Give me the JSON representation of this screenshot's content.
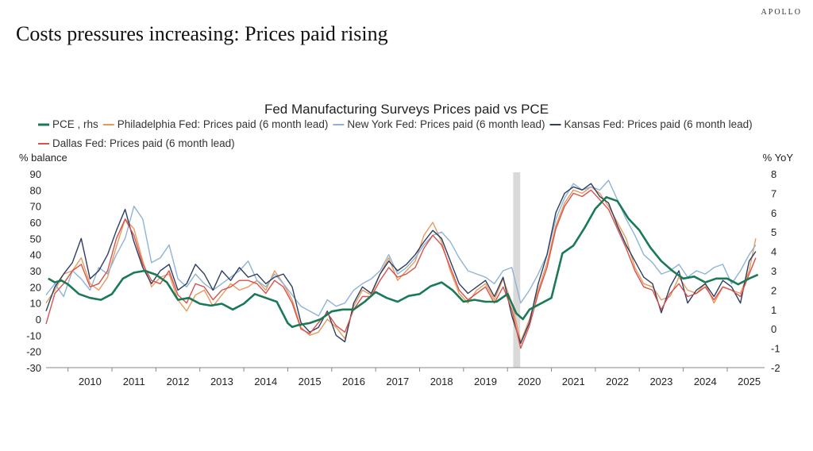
{
  "header": {
    "brand": "APOLLO",
    "title": "Costs pressures increasing: Prices paid rising"
  },
  "chart_data": {
    "type": "line",
    "title": "Fed Manufacturing Surveys Prices paid vs PCE",
    "ylabel_left": "% balance",
    "ylabel_right": "% YoY",
    "ylim_left": [
      -30,
      90
    ],
    "ylim_right": [
      -2,
      8
    ],
    "yticks_left": [
      "90",
      "80",
      "70",
      "60",
      "50",
      "40",
      "30",
      "20",
      "10",
      "0",
      "-10",
      "-20",
      "-30"
    ],
    "yticks_right": [
      "8",
      "7",
      "6",
      "5",
      "4",
      "3",
      "2",
      "1",
      "0",
      "-1",
      "-2"
    ],
    "x_categories": [
      "2010",
      "2011",
      "2012",
      "2013",
      "2014",
      "2015",
      "2016",
      "2017",
      "2018",
      "2019",
      "2020",
      "2021",
      "2022",
      "2023",
      "2024",
      "2025"
    ],
    "xlim": [
      2009.5,
      2025.85
    ],
    "recession": [
      2020.13,
      2020.29
    ],
    "legend_position": "top",
    "series": [
      {
        "name": "PCE , rhs",
        "axis": "right",
        "color": "#1a7a55",
        "width": 2.6,
        "x": [
          2009.55,
          2009.7,
          2009.85,
          2010.0,
          2010.25,
          2010.5,
          2010.75,
          2011.0,
          2011.25,
          2011.5,
          2011.75,
          2012.0,
          2012.25,
          2012.5,
          2012.75,
          2013.0,
          2013.25,
          2013.5,
          2013.75,
          2014.0,
          2014.25,
          2014.5,
          2014.75,
          2015.0,
          2015.1,
          2015.25,
          2015.5,
          2015.75,
          2016.0,
          2016.25,
          2016.5,
          2016.75,
          2017.0,
          2017.25,
          2017.5,
          2017.75,
          2018.0,
          2018.25,
          2018.5,
          2018.75,
          2019.0,
          2019.25,
          2019.5,
          2019.75,
          2020.0,
          2020.2,
          2020.35,
          2020.5,
          2020.75,
          2021.0,
          2021.25,
          2021.5,
          2021.75,
          2022.0,
          2022.25,
          2022.5,
          2022.75,
          2023.0,
          2023.25,
          2023.5,
          2023.75,
          2024.0,
          2024.25,
          2024.5,
          2024.75,
          2025.0,
          2025.25,
          2025.5,
          2025.7
        ],
        "y": [
          2.6,
          2.4,
          2.5,
          2.3,
          1.8,
          1.6,
          1.5,
          1.8,
          2.6,
          2.9,
          3.0,
          2.8,
          2.4,
          1.5,
          1.6,
          1.3,
          1.2,
          1.3,
          1.0,
          1.3,
          1.8,
          1.6,
          1.4,
          0.3,
          0.1,
          0.2,
          0.3,
          0.5,
          0.9,
          1.0,
          1.0,
          1.4,
          1.9,
          1.6,
          1.4,
          1.7,
          1.8,
          2.2,
          2.4,
          2.0,
          1.4,
          1.5,
          1.4,
          1.4,
          1.8,
          0.8,
          0.5,
          1.0,
          1.3,
          1.6,
          3.9,
          4.3,
          5.2,
          6.2,
          6.8,
          6.6,
          5.7,
          5.1,
          4.2,
          3.5,
          3.0,
          2.6,
          2.7,
          2.4,
          2.6,
          2.6,
          2.3,
          2.6,
          2.8
        ]
      },
      {
        "name": "Philadelphia Fed: Prices paid (6 month lead)",
        "axis": "left",
        "color": "#e79a5c",
        "width": 1.4,
        "x": [
          2009.5,
          2009.7,
          2009.9,
          2010.1,
          2010.3,
          2010.5,
          2010.7,
          2010.9,
          2011.1,
          2011.3,
          2011.5,
          2011.7,
          2011.9,
          2012.1,
          2012.3,
          2012.5,
          2012.7,
          2012.9,
          2013.1,
          2013.3,
          2013.5,
          2013.7,
          2013.9,
          2014.1,
          2014.3,
          2014.5,
          2014.7,
          2014.9,
          2015.1,
          2015.3,
          2015.5,
          2015.7,
          2015.9,
          2016.1,
          2016.3,
          2016.5,
          2016.7,
          2016.9,
          2017.1,
          2017.3,
          2017.5,
          2017.7,
          2017.9,
          2018.1,
          2018.3,
          2018.5,
          2018.7,
          2018.9,
          2019.1,
          2019.3,
          2019.5,
          2019.7,
          2019.9,
          2020.1,
          2020.3,
          2020.5,
          2020.7,
          2020.9,
          2021.1,
          2021.3,
          2021.5,
          2021.7,
          2021.9,
          2022.1,
          2022.3,
          2022.5,
          2022.7,
          2022.9,
          2023.1,
          2023.3,
          2023.5,
          2023.7,
          2023.9,
          2024.1,
          2024.3,
          2024.5,
          2024.7,
          2024.9,
          2025.1,
          2025.3,
          2025.5,
          2025.65
        ],
        "y": [
          10,
          18,
          28,
          30,
          38,
          22,
          18,
          26,
          45,
          62,
          56,
          36,
          20,
          26,
          28,
          12,
          5,
          15,
          18,
          8,
          15,
          22,
          18,
          20,
          24,
          18,
          30,
          22,
          12,
          -5,
          -10,
          -8,
          0,
          -5,
          -12,
          8,
          18,
          15,
          28,
          38,
          24,
          30,
          36,
          52,
          60,
          48,
          30,
          16,
          10,
          18,
          22,
          12,
          25,
          10,
          -14,
          0,
          18,
          35,
          58,
          72,
          80,
          78,
          82,
          78,
          70,
          60,
          50,
          32,
          22,
          20,
          12,
          14,
          26,
          18,
          16,
          22,
          10,
          20,
          18,
          16,
          30,
          50
        ]
      },
      {
        "name": "New York Fed: Prices paid (6 month lead)",
        "axis": "left",
        "color": "#8fb3d6",
        "width": 1.4,
        "x": [
          2009.5,
          2009.7,
          2009.9,
          2010.1,
          2010.3,
          2010.5,
          2010.7,
          2010.9,
          2011.1,
          2011.3,
          2011.5,
          2011.7,
          2011.9,
          2012.1,
          2012.3,
          2012.5,
          2012.7,
          2012.9,
          2013.1,
          2013.3,
          2013.5,
          2013.7,
          2013.9,
          2014.1,
          2014.3,
          2014.5,
          2014.7,
          2014.9,
          2015.1,
          2015.3,
          2015.5,
          2015.7,
          2015.9,
          2016.1,
          2016.3,
          2016.5,
          2016.7,
          2016.9,
          2017.1,
          2017.3,
          2017.5,
          2017.7,
          2017.9,
          2018.1,
          2018.3,
          2018.5,
          2018.7,
          2018.9,
          2019.1,
          2019.3,
          2019.5,
          2019.7,
          2019.9,
          2020.1,
          2020.3,
          2020.5,
          2020.7,
          2020.9,
          2021.1,
          2021.3,
          2021.5,
          2021.7,
          2021.9,
          2022.1,
          2022.3,
          2022.5,
          2022.7,
          2022.9,
          2023.1,
          2023.3,
          2023.5,
          2023.7,
          2023.9,
          2024.1,
          2024.3,
          2024.5,
          2024.7,
          2024.9,
          2025.1,
          2025.3,
          2025.5,
          2025.65
        ],
        "y": [
          15,
          22,
          14,
          30,
          25,
          18,
          32,
          28,
          40,
          50,
          70,
          62,
          35,
          38,
          46,
          25,
          20,
          28,
          22,
          18,
          22,
          26,
          30,
          36,
          24,
          20,
          28,
          22,
          15,
          8,
          5,
          2,
          12,
          8,
          10,
          18,
          22,
          25,
          30,
          40,
          28,
          32,
          38,
          46,
          52,
          54,
          48,
          38,
          30,
          28,
          26,
          22,
          30,
          32,
          10,
          18,
          28,
          40,
          62,
          75,
          84,
          80,
          82,
          80,
          86,
          74,
          62,
          52,
          40,
          35,
          28,
          30,
          34,
          26,
          30,
          28,
          32,
          34,
          22,
          30,
          40,
          46
        ]
      },
      {
        "name": "Kansas Fed: Prices paid (6 month lead)",
        "axis": "left",
        "color": "#2d3f63",
        "width": 1.4,
        "x": [
          2009.5,
          2009.7,
          2009.9,
          2010.1,
          2010.3,
          2010.5,
          2010.7,
          2010.9,
          2011.1,
          2011.3,
          2011.5,
          2011.7,
          2011.9,
          2012.1,
          2012.3,
          2012.5,
          2012.7,
          2012.9,
          2013.1,
          2013.3,
          2013.5,
          2013.7,
          2013.9,
          2014.1,
          2014.3,
          2014.5,
          2014.7,
          2014.9,
          2015.1,
          2015.3,
          2015.5,
          2015.7,
          2015.9,
          2016.1,
          2016.3,
          2016.5,
          2016.7,
          2016.9,
          2017.1,
          2017.3,
          2017.5,
          2017.7,
          2017.9,
          2018.1,
          2018.3,
          2018.5,
          2018.7,
          2018.9,
          2019.1,
          2019.3,
          2019.5,
          2019.7,
          2019.9,
          2020.1,
          2020.3,
          2020.5,
          2020.7,
          2020.9,
          2021.1,
          2021.3,
          2021.5,
          2021.7,
          2021.9,
          2022.1,
          2022.3,
          2022.5,
          2022.7,
          2022.9,
          2023.1,
          2023.3,
          2023.5,
          2023.7,
          2023.9,
          2024.1,
          2024.3,
          2024.5,
          2024.7,
          2024.9,
          2025.1,
          2025.3,
          2025.5,
          2025.65
        ],
        "y": [
          5,
          20,
          28,
          35,
          50,
          25,
          30,
          40,
          55,
          68,
          48,
          32,
          22,
          30,
          34,
          18,
          22,
          34,
          28,
          18,
          30,
          24,
          32,
          26,
          28,
          22,
          26,
          28,
          20,
          -2,
          -8,
          -5,
          5,
          -10,
          -14,
          10,
          20,
          16,
          28,
          36,
          30,
          34,
          40,
          48,
          55,
          50,
          36,
          22,
          16,
          20,
          24,
          14,
          26,
          2,
          -15,
          -2,
          22,
          40,
          66,
          78,
          82,
          80,
          84,
          76,
          72,
          58,
          46,
          36,
          26,
          22,
          4,
          20,
          30,
          10,
          18,
          22,
          14,
          24,
          20,
          10,
          36,
          42
        ]
      },
      {
        "name": "Dallas Fed: Prices paid (6 month lead)",
        "axis": "left",
        "color": "#d9524b",
        "width": 1.4,
        "x": [
          2009.5,
          2009.7,
          2009.9,
          2010.1,
          2010.3,
          2010.5,
          2010.7,
          2010.9,
          2011.1,
          2011.3,
          2011.5,
          2011.7,
          2011.9,
          2012.1,
          2012.3,
          2012.5,
          2012.7,
          2012.9,
          2013.1,
          2013.3,
          2013.5,
          2013.7,
          2013.9,
          2014.1,
          2014.3,
          2014.5,
          2014.7,
          2014.9,
          2015.1,
          2015.3,
          2015.5,
          2015.7,
          2015.9,
          2016.1,
          2016.3,
          2016.5,
          2016.7,
          2016.9,
          2017.1,
          2017.3,
          2017.5,
          2017.7,
          2017.9,
          2018.1,
          2018.3,
          2018.5,
          2018.7,
          2018.9,
          2019.1,
          2019.3,
          2019.5,
          2019.7,
          2019.9,
          2020.1,
          2020.3,
          2020.5,
          2020.7,
          2020.9,
          2021.1,
          2021.3,
          2021.5,
          2021.7,
          2021.9,
          2022.1,
          2022.3,
          2022.5,
          2022.7,
          2022.9,
          2023.1,
          2023.3,
          2023.5,
          2023.7,
          2023.9,
          2024.1,
          2024.3,
          2024.5,
          2024.7,
          2024.9,
          2025.1,
          2025.3,
          2025.5,
          2025.65
        ],
        "y": [
          -3,
          16,
          22,
          30,
          34,
          20,
          22,
          30,
          50,
          62,
          52,
          34,
          24,
          22,
          30,
          15,
          10,
          22,
          20,
          12,
          18,
          20,
          24,
          24,
          22,
          16,
          24,
          20,
          10,
          -6,
          -9,
          -2,
          4,
          -4,
          -8,
          6,
          14,
          14,
          24,
          32,
          26,
          28,
          32,
          44,
          52,
          46,
          32,
          18,
          12,
          16,
          20,
          10,
          20,
          6,
          -18,
          -4,
          16,
          32,
          56,
          70,
          78,
          76,
          80,
          74,
          68,
          56,
          44,
          30,
          20,
          18,
          6,
          16,
          22,
          14,
          16,
          20,
          12,
          20,
          18,
          14,
          28,
          38
        ]
      }
    ]
  }
}
